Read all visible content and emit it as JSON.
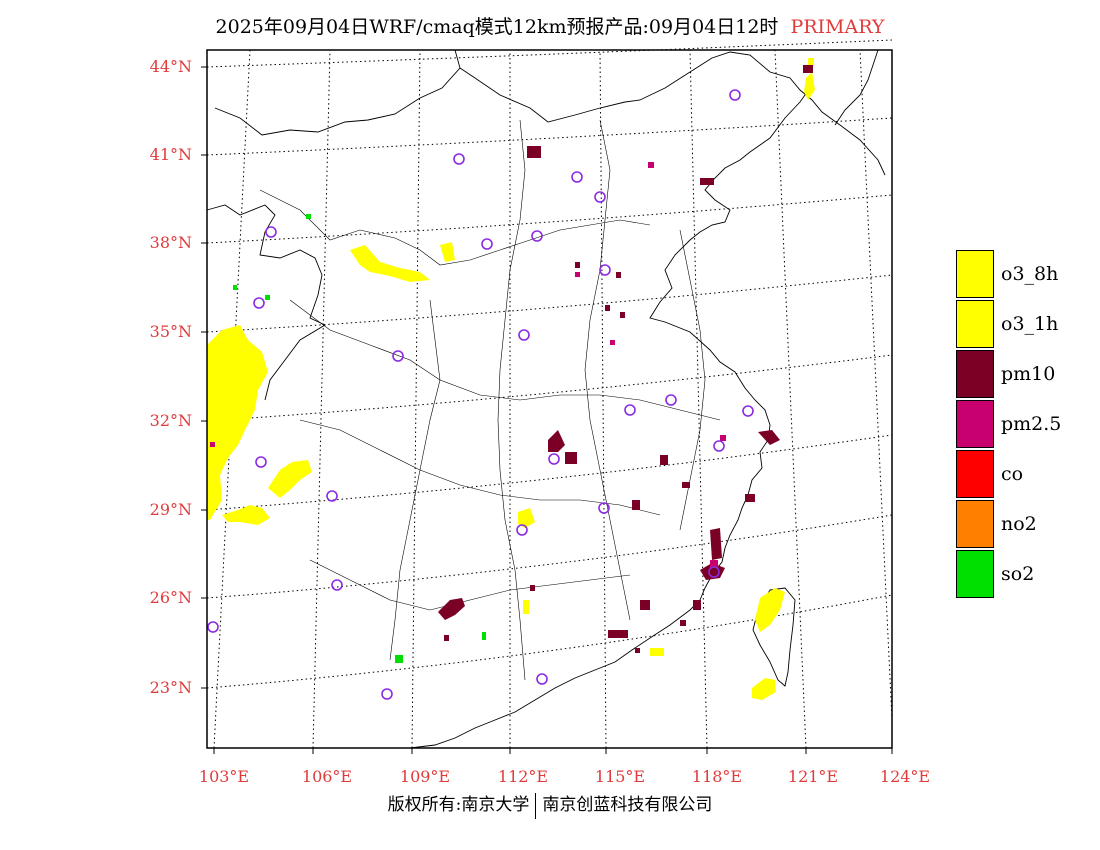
{
  "title": {
    "main": "2025年09月04日WRF/cmaq模式12km预报产品:09月04日12时",
    "accent": "PRIMARY"
  },
  "axes": {
    "lat_labels": [
      "44°N",
      "41°N",
      "38°N",
      "35°N",
      "32°N",
      "29°N",
      "26°N",
      "23°N"
    ],
    "lon_labels": [
      "103°E",
      "106°E",
      "109°E",
      "112°E",
      "115°E",
      "118°E",
      "121°E",
      "124°E"
    ]
  },
  "legend": [
    {
      "label": "o3_8h",
      "color": "#ffff00"
    },
    {
      "label": "o3_1h",
      "color": "#ffff00"
    },
    {
      "label": "pm10",
      "color": "#7a0026"
    },
    {
      "label": "pm2.5",
      "color": "#c8006f"
    },
    {
      "label": "co",
      "color": "#ff0000"
    },
    {
      "label": "no2",
      "color": "#ff7f00"
    },
    {
      "label": "so2",
      "color": "#00e000"
    }
  ],
  "footer": {
    "left": "版权所有:南京大学",
    "right": "南京创蓝科技有限公司"
  },
  "colors": {
    "tick_label": "#e03b3b",
    "station_marker": "#8a2be2",
    "o3": "#ffff00",
    "pm10": "#7a0026",
    "pm25": "#c8006f",
    "so2": "#00e000"
  }
}
